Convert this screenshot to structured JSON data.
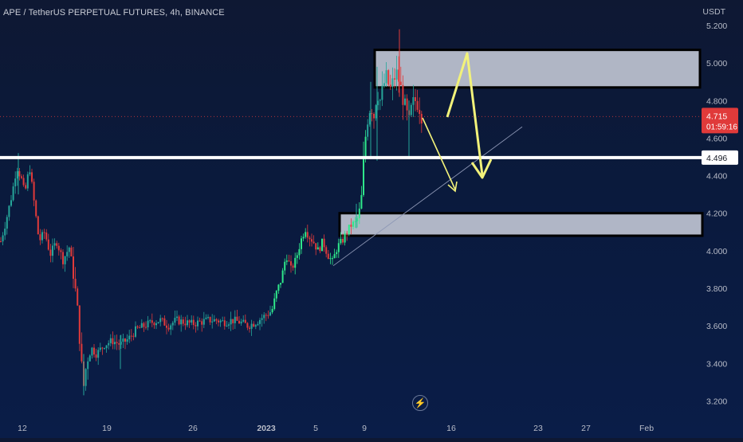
{
  "header": {
    "title": "APE / TetherUS PERPETUAL FUTURES, 4h, BINANCE",
    "currency": "USDT"
  },
  "colors": {
    "up": "#26a69a",
    "up_bright": "#2ee88a",
    "down": "#e03a3a",
    "zone_fill": "#c7ccd9",
    "arrow": "#f2f27a",
    "support_line": "#ffffff",
    "price_tag": "#e03a3a"
  },
  "price_badge": {
    "price": "4.715",
    "countdown": "01:59:16"
  },
  "support_badge": "4.496",
  "lightning_icon": "lightning-icon",
  "chart_data": {
    "type": "candlestick",
    "title": "APE / TetherUS PERPETUAL FUTURES, 4h, BINANCE",
    "ylabel": "USDT",
    "ylim": [
      3.17,
      5.25
    ],
    "y_ticks": [
      "5.200",
      "5.000",
      "4.800",
      "4.600",
      "4.400",
      "4.200",
      "4.000",
      "3.800",
      "3.600",
      "3.400",
      "3.200"
    ],
    "x_ticks": [
      "12",
      "19",
      "26",
      "2023",
      "5",
      "9",
      "16",
      "23",
      "27",
      "Feb"
    ],
    "current_price": 4.715,
    "support_level": 4.496,
    "zones": [
      {
        "name": "resistance-zone",
        "from": 4.87,
        "to": 5.07
      },
      {
        "name": "demand-zone",
        "from": 4.08,
        "to": 4.2
      }
    ],
    "path": [
      [
        0,
        4.05
      ],
      [
        6,
        4.15
      ],
      [
        14,
        4.3
      ],
      [
        20,
        4.45
      ],
      [
        26,
        4.38
      ],
      [
        30,
        4.3
      ],
      [
        36,
        4.45
      ],
      [
        42,
        4.25
      ],
      [
        48,
        4.05
      ],
      [
        55,
        4.1
      ],
      [
        62,
        3.98
      ],
      [
        70,
        4.05
      ],
      [
        78,
        3.95
      ],
      [
        86,
        4.02
      ],
      [
        92,
        3.85
      ],
      [
        97,
        3.65
      ],
      [
        101,
        3.4
      ],
      [
        104,
        3.28
      ],
      [
        108,
        3.42
      ],
      [
        114,
        3.48
      ],
      [
        120,
        3.45
      ],
      [
        130,
        3.5
      ],
      [
        140,
        3.52
      ],
      [
        150,
        3.5
      ],
      [
        160,
        3.53
      ],
      [
        170,
        3.58
      ],
      [
        180,
        3.6
      ],
      [
        190,
        3.62
      ],
      [
        200,
        3.63
      ],
      [
        210,
        3.6
      ],
      [
        220,
        3.63
      ],
      [
        230,
        3.62
      ],
      [
        240,
        3.61
      ],
      [
        250,
        3.62
      ],
      [
        260,
        3.63
      ],
      [
        270,
        3.63
      ],
      [
        280,
        3.62
      ],
      [
        290,
        3.63
      ],
      [
        300,
        3.62
      ],
      [
        310,
        3.6
      ],
      [
        320,
        3.62
      ],
      [
        330,
        3.65
      ],
      [
        340,
        3.68
      ],
      [
        346,
        3.78
      ],
      [
        352,
        3.85
      ],
      [
        358,
        3.98
      ],
      [
        364,
        3.9
      ],
      [
        370,
        3.95
      ],
      [
        376,
        4.05
      ],
      [
        382,
        4.12
      ],
      [
        386,
        4.08
      ],
      [
        392,
        4.05
      ],
      [
        398,
        4.0
      ],
      [
        404,
        4.05
      ],
      [
        410,
        3.98
      ],
      [
        416,
        3.94
      ],
      [
        422,
        4.02
      ],
      [
        428,
        4.05
      ],
      [
        434,
        4.1
      ],
      [
        440,
        4.14
      ],
      [
        446,
        4.15
      ],
      [
        452,
        4.25
      ],
      [
        456,
        4.55
      ],
      [
        460,
        4.7
      ],
      [
        464,
        4.78
      ],
      [
        468,
        4.72
      ],
      [
        472,
        4.85
      ],
      [
        476,
        4.8
      ],
      [
        480,
        4.88
      ],
      [
        484,
        4.93
      ],
      [
        488,
        4.85
      ],
      [
        492,
        4.9
      ],
      [
        496,
        4.95
      ],
      [
        500,
        4.9
      ],
      [
        504,
        4.82
      ],
      [
        508,
        4.75
      ],
      [
        512,
        4.68
      ],
      [
        516,
        4.78
      ],
      [
        520,
        4.8
      ],
      [
        524,
        4.78
      ],
      [
        528,
        4.72
      ]
    ],
    "spikes": [
      {
        "x": 22,
        "high": 4.52,
        "low": 4.3
      },
      {
        "x": 104,
        "high": 3.45,
        "low": 3.23
      },
      {
        "x": 150,
        "high": 3.55,
        "low": 3.37
      },
      {
        "x": 446,
        "high": 4.25,
        "low": 4.12
      },
      {
        "x": 464,
        "high": 4.9,
        "low": 4.5
      },
      {
        "x": 472,
        "high": 4.98,
        "low": 4.48
      },
      {
        "x": 500,
        "high": 5.18,
        "low": 4.82
      },
      {
        "x": 512,
        "high": 4.8,
        "low": 4.5
      }
    ]
  }
}
